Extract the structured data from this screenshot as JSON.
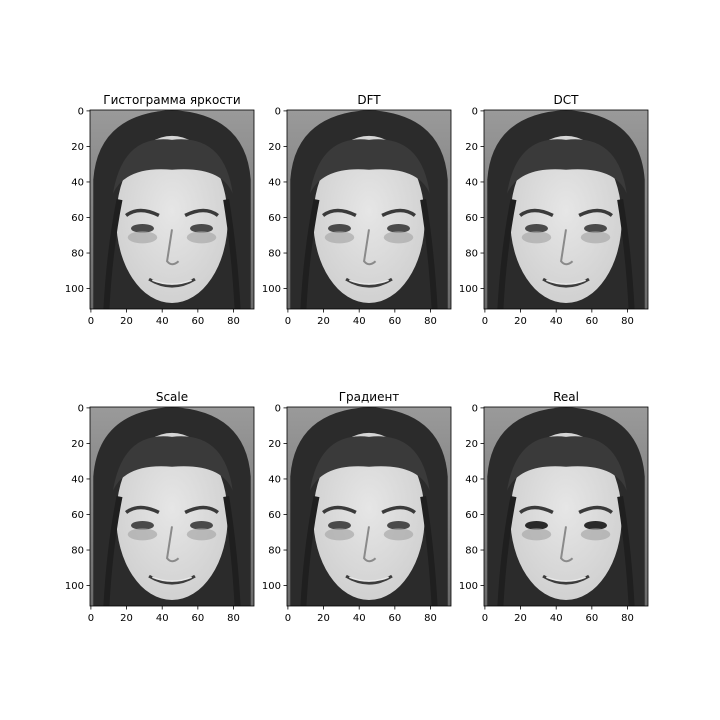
{
  "chart_data": {
    "type": "image-grid",
    "rows": 2,
    "cols": 3,
    "image": {
      "content": "grayscale face photograph",
      "width": 92,
      "height": 112
    },
    "panels": [
      {
        "title": "Гистограмма яркости",
        "variant": "processed"
      },
      {
        "title": "DFT",
        "variant": "processed"
      },
      {
        "title": "DCT",
        "variant": "processed"
      },
      {
        "title": "Scale",
        "variant": "processed"
      },
      {
        "title": "Градиент",
        "variant": "processed"
      },
      {
        "title": "Real",
        "variant": "original"
      }
    ],
    "xaxis": {
      "lim": [
        -0.5,
        91.5
      ],
      "ticks": [
        0,
        20,
        40,
        60,
        80
      ],
      "tick_labels": [
        "0",
        "20",
        "40",
        "60",
        "80"
      ]
    },
    "yaxis": {
      "lim": [
        111.5,
        -0.5
      ],
      "ticks": [
        0,
        20,
        40,
        60,
        80,
        100
      ],
      "tick_labels": [
        "0",
        "20",
        "40",
        "60",
        "80",
        "100"
      ]
    },
    "grid": false,
    "legend": "none"
  },
  "colors": {
    "background": "#ffffff",
    "image_bg": "#8f8f8f",
    "hair": "#2b2b2b",
    "skin": "#cfcfcf",
    "skin_light": "#e6e6e6",
    "feature_dark": "#3a3a3a",
    "axis": "#000000"
  }
}
